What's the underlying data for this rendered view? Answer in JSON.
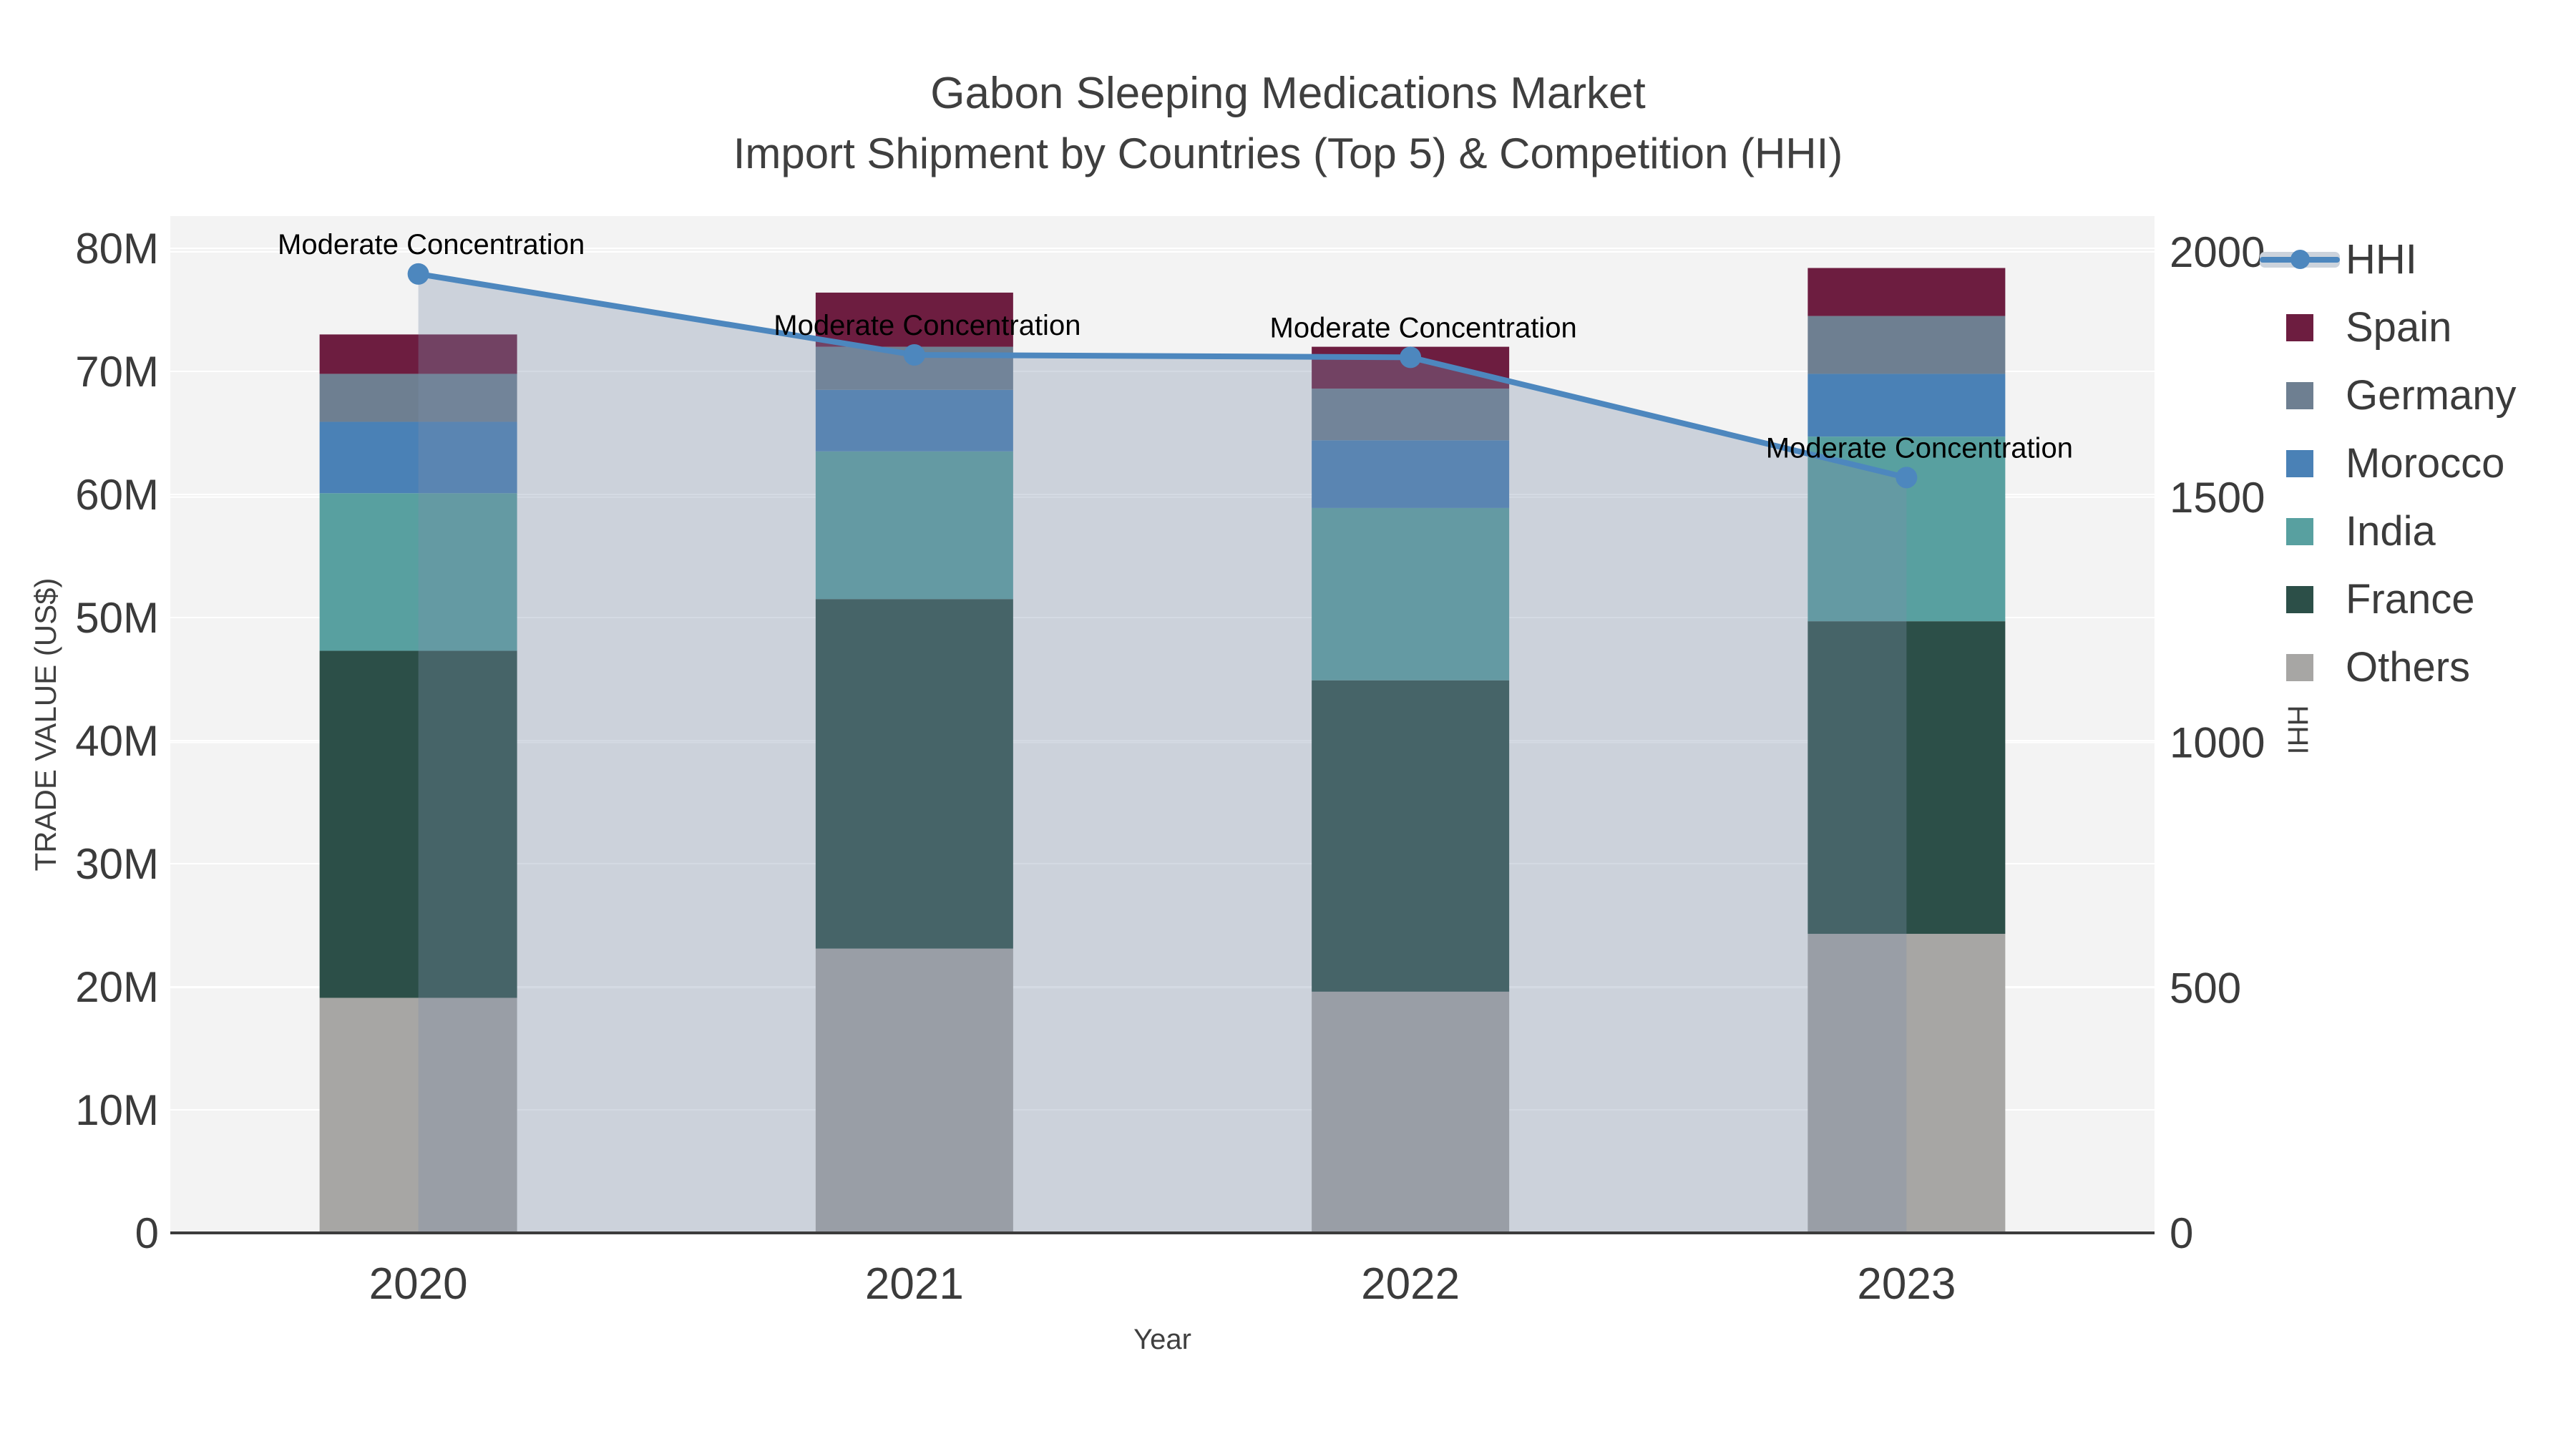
{
  "title": {
    "line1": "Gabon Sleeping Medications Market",
    "line2": "Import Shipment by Countries (Top 5) & Competition (HHI)"
  },
  "chart_data": {
    "type": "bar",
    "subtype": "stacked-bars-with-line-overlay",
    "categories": [
      "2020",
      "2021",
      "2022",
      "2023"
    ],
    "value_unit": "millions US$",
    "series": [
      {
        "name": "Others",
        "color": "#a7a6a4",
        "values": [
          19.1,
          23.1,
          19.6,
          24.3
        ]
      },
      {
        "name": "France",
        "color": "#2c4f48",
        "values": [
          28.2,
          28.4,
          25.3,
          25.4
        ]
      },
      {
        "name": "India",
        "color": "#58a0a0",
        "values": [
          12.8,
          12.0,
          14.0,
          15.0
        ]
      },
      {
        "name": "Morocco",
        "color": "#4a81b6",
        "values": [
          5.8,
          5.0,
          5.5,
          5.1
        ]
      },
      {
        "name": "Germany",
        "color": "#6e7f91",
        "values": [
          3.9,
          3.5,
          4.2,
          4.7
        ]
      },
      {
        "name": "Spain",
        "color": "#6d1d40",
        "values": [
          3.2,
          4.4,
          3.4,
          3.9
        ]
      }
    ],
    "bar_totals": [
      73.0,
      76.4,
      72.0,
      78.4
    ],
    "line_series": {
      "name": "HHI",
      "axis": "right",
      "color": "#4d87be",
      "fill_color": "rgba(124,142,170,0.33)",
      "values": [
        1955,
        1790,
        1785,
        1540
      ]
    },
    "annotations": [
      {
        "text": "Moderate Concentration",
        "category": "2020"
      },
      {
        "text": "Moderate Concentration",
        "category": "2021"
      },
      {
        "text": "Moderate Concentration",
        "category": "2022"
      },
      {
        "text": "Moderate Concentration",
        "category": "2023"
      }
    ],
    "axes": {
      "left": {
        "title": "TRADE VALUE (US$)",
        "tick_labels": [
          "0",
          "10M",
          "20M",
          "30M",
          "40M",
          "50M",
          "60M",
          "70M",
          "80M"
        ],
        "tick_values": [
          0,
          10,
          20,
          30,
          40,
          50,
          60,
          70,
          80
        ],
        "range_millions": [
          0,
          80
        ]
      },
      "right": {
        "title": "HHI",
        "tick_labels": [
          "0",
          "500",
          "1000",
          "1500",
          "2000"
        ],
        "tick_values": [
          0,
          500,
          1000,
          1500,
          2000
        ],
        "range": [
          0,
          2000
        ]
      },
      "x": {
        "title": "Year"
      }
    },
    "legend_position": "right",
    "grid": true,
    "legend": {
      "items": [
        {
          "label": "HHI",
          "type": "line"
        },
        {
          "label": "Spain",
          "type": "swatch",
          "color": "#6d1d40"
        },
        {
          "label": "Germany",
          "type": "swatch",
          "color": "#6e7f91"
        },
        {
          "label": "Morocco",
          "type": "swatch",
          "color": "#4a81b6"
        },
        {
          "label": "India",
          "type": "swatch",
          "color": "#58a0a0"
        },
        {
          "label": "France",
          "type": "swatch",
          "color": "#2c4f48"
        },
        {
          "label": "Others",
          "type": "swatch",
          "color": "#a7a6a4"
        }
      ]
    }
  },
  "colors": {
    "plot_bg": "#f3f3f3",
    "grid": "#ffffff",
    "axis_line": "#3c3c3c",
    "tick_text": "#3b3b3b",
    "axis_title_text": "#3f3f3f",
    "annotation_text": "#000000"
  }
}
